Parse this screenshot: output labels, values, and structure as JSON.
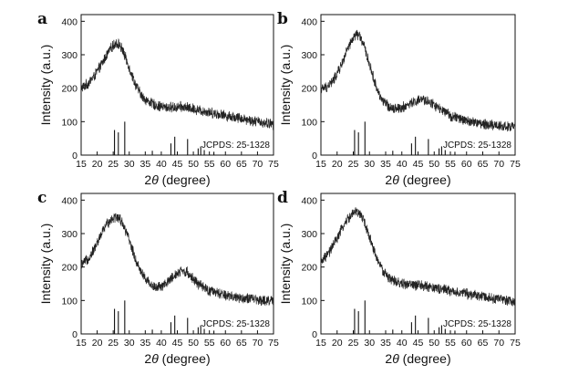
{
  "chart_data": [
    {
      "panel": "a",
      "type": "line",
      "xlabel": "2θ (degree)",
      "xlabel_prefix": "2",
      "xlabel_symbol": "θ",
      "xlabel_suffix": " (degree)",
      "ylabel": "Intensity (a.u.)",
      "xlim": [
        15,
        75
      ],
      "ylim": [
        0,
        420
      ],
      "xticks": [
        15,
        20,
        25,
        30,
        35,
        40,
        45,
        50,
        55,
        60,
        65,
        70,
        75
      ],
      "yticks": [
        0,
        100,
        200,
        300,
        400
      ],
      "pattern_x": [
        15,
        17,
        19,
        21,
        23,
        25,
        26,
        27,
        28,
        30,
        32,
        34,
        36,
        38,
        40,
        42,
        44,
        46,
        48,
        50,
        52,
        55,
        60,
        65,
        70,
        75
      ],
      "pattern_y": [
        200,
        213,
        235,
        265,
        300,
        328,
        335,
        330,
        312,
        262,
        210,
        175,
        160,
        150,
        145,
        142,
        143,
        144,
        142,
        138,
        134,
        128,
        118,
        110,
        100,
        92
      ],
      "noise_amplitude": 18,
      "reference_label": "JCPDS: 25-1328",
      "reference_peaks": [
        {
          "x": 25.4,
          "h": 75
        },
        {
          "x": 26.6,
          "h": 68
        },
        {
          "x": 28.6,
          "h": 100
        },
        {
          "x": 37.2,
          "h": 13
        },
        {
          "x": 43.0,
          "h": 35
        },
        {
          "x": 44.2,
          "h": 55
        },
        {
          "x": 48.2,
          "h": 48
        },
        {
          "x": 51.5,
          "h": 20
        },
        {
          "x": 52.3,
          "h": 26
        },
        {
          "x": 53.4,
          "h": 15
        },
        {
          "x": 56.4,
          "h": 10
        }
      ]
    },
    {
      "panel": "b",
      "type": "line",
      "xlabel": "2θ (degree)",
      "xlabel_prefix": "2",
      "xlabel_symbol": "θ",
      "xlabel_suffix": " (degree)",
      "ylabel": "Intensity (a.u.)",
      "xlim": [
        15,
        75
      ],
      "ylim": [
        0,
        420
      ],
      "xticks": [
        15,
        20,
        25,
        30,
        35,
        40,
        45,
        50,
        55,
        60,
        65,
        70,
        75
      ],
      "yticks": [
        0,
        100,
        200,
        300,
        400
      ],
      "pattern_x": [
        15,
        17,
        19,
        21,
        23,
        25,
        26,
        27,
        28,
        30,
        32,
        34,
        36,
        38,
        40,
        42,
        44,
        46,
        48,
        50,
        52,
        55,
        60,
        65,
        70,
        75
      ],
      "pattern_y": [
        195,
        205,
        225,
        262,
        310,
        350,
        362,
        355,
        335,
        272,
        205,
        163,
        145,
        140,
        142,
        150,
        160,
        165,
        162,
        150,
        135,
        118,
        102,
        93,
        88,
        83
      ],
      "noise_amplitude": 18,
      "reference_label": "JCPDS: 25-1328",
      "reference_peaks": [
        {
          "x": 25.4,
          "h": 75
        },
        {
          "x": 26.6,
          "h": 68
        },
        {
          "x": 28.6,
          "h": 100
        },
        {
          "x": 37.2,
          "h": 13
        },
        {
          "x": 43.0,
          "h": 35
        },
        {
          "x": 44.2,
          "h": 55
        },
        {
          "x": 48.2,
          "h": 48
        },
        {
          "x": 51.5,
          "h": 20
        },
        {
          "x": 52.3,
          "h": 26
        },
        {
          "x": 53.4,
          "h": 15
        },
        {
          "x": 56.4,
          "h": 10
        }
      ]
    },
    {
      "panel": "c",
      "type": "line",
      "xlabel": "2θ (degree)",
      "xlabel_prefix": "2",
      "xlabel_symbol": "θ",
      "xlabel_suffix": " (degree)",
      "ylabel": "Intensity (a.u.)",
      "xlim": [
        15,
        75
      ],
      "ylim": [
        0,
        420
      ],
      "xticks": [
        15,
        20,
        25,
        30,
        35,
        40,
        45,
        50,
        55,
        60,
        65,
        70,
        75
      ],
      "yticks": [
        0,
        100,
        200,
        300,
        400
      ],
      "pattern_x": [
        15,
        17,
        19,
        21,
        23,
        25,
        26,
        27,
        28,
        30,
        32,
        34,
        36,
        38,
        40,
        42,
        44,
        46,
        48,
        50,
        52,
        55,
        60,
        65,
        70,
        75
      ],
      "pattern_y": [
        205,
        222,
        252,
        292,
        330,
        348,
        350,
        345,
        330,
        280,
        222,
        180,
        155,
        140,
        140,
        155,
        175,
        188,
        185,
        165,
        145,
        128,
        115,
        108,
        102,
        98
      ],
      "noise_amplitude": 18,
      "reference_label": "JCPDS: 25-1328",
      "reference_peaks": [
        {
          "x": 25.4,
          "h": 75
        },
        {
          "x": 26.6,
          "h": 68
        },
        {
          "x": 28.6,
          "h": 100
        },
        {
          "x": 37.2,
          "h": 13
        },
        {
          "x": 43.0,
          "h": 35
        },
        {
          "x": 44.2,
          "h": 55
        },
        {
          "x": 48.2,
          "h": 48
        },
        {
          "x": 51.5,
          "h": 20
        },
        {
          "x": 52.3,
          "h": 26
        },
        {
          "x": 53.4,
          "h": 15
        },
        {
          "x": 56.4,
          "h": 10
        }
      ]
    },
    {
      "panel": "d",
      "type": "line",
      "xlabel": "2θ (degree)",
      "xlabel_prefix": "2",
      "xlabel_symbol": "θ",
      "xlabel_suffix": " (degree)",
      "ylabel": "Intensity (a.u.)",
      "xlim": [
        15,
        75
      ],
      "ylim": [
        0,
        420
      ],
      "xticks": [
        15,
        20,
        25,
        30,
        35,
        40,
        45,
        50,
        55,
        60,
        65,
        70,
        75
      ],
      "yticks": [
        0,
        100,
        200,
        300,
        400
      ],
      "pattern_x": [
        15,
        17,
        19,
        21,
        23,
        25,
        26,
        27,
        28,
        30,
        32,
        34,
        36,
        38,
        40,
        42,
        44,
        46,
        48,
        50,
        52,
        55,
        60,
        65,
        70,
        75
      ],
      "pattern_y": [
        215,
        235,
        268,
        305,
        340,
        360,
        365,
        360,
        345,
        290,
        232,
        190,
        168,
        155,
        150,
        148,
        146,
        144,
        142,
        138,
        134,
        128,
        120,
        112,
        104,
        97
      ],
      "noise_amplitude": 18,
      "reference_label": "JCPDS: 25-1328",
      "reference_peaks": [
        {
          "x": 25.4,
          "h": 75
        },
        {
          "x": 26.6,
          "h": 68
        },
        {
          "x": 28.6,
          "h": 100
        },
        {
          "x": 37.2,
          "h": 13
        },
        {
          "x": 43.0,
          "h": 35
        },
        {
          "x": 44.2,
          "h": 55
        },
        {
          "x": 48.2,
          "h": 48
        },
        {
          "x": 51.5,
          "h": 20
        },
        {
          "x": 52.3,
          "h": 26
        },
        {
          "x": 53.4,
          "h": 15
        },
        {
          "x": 56.4,
          "h": 10
        }
      ]
    }
  ]
}
